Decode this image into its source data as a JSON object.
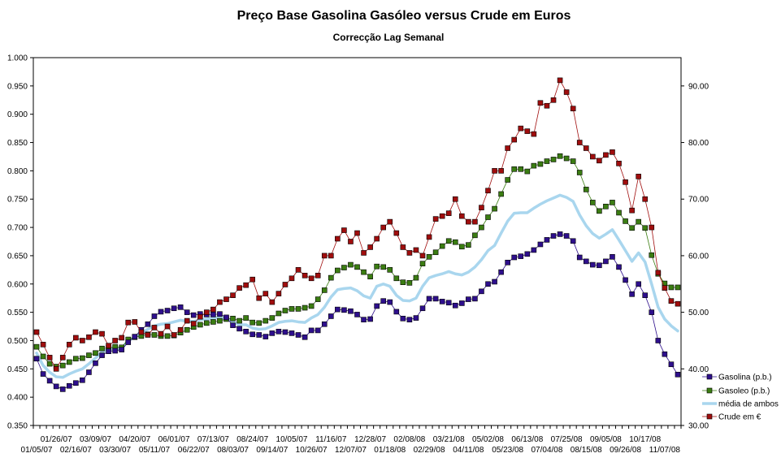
{
  "chart_data": {
    "type": "line",
    "title": "Preço Base Gasolina Gasóleo versus Crude em Euros",
    "subtitle": "Correcção Lag Semanal",
    "y_left": {
      "range": [
        0.35,
        1.0
      ],
      "ticks": [
        "0.350",
        "0.400",
        "0.450",
        "0.500",
        "0.550",
        "0.600",
        "0.650",
        "0.700",
        "0.750",
        "0.800",
        "0.850",
        "0.900",
        "0.950",
        "1.000"
      ]
    },
    "y_right": {
      "range": [
        30,
        95
      ],
      "ticks": [
        "30.00",
        "40.00",
        "50.00",
        "60.00",
        "70.00",
        "80.00",
        "90.00"
      ]
    },
    "x_labels_upper": [
      "01/26/07",
      "03/09/07",
      "04/20/07",
      "06/01/07",
      "07/13/07",
      "08/24/07",
      "10/05/07",
      "11/16/07",
      "12/28/07",
      "02/08/08",
      "03/21/08",
      "05/02/08",
      "06/13/08",
      "07/25/08",
      "09/05/08",
      "10/17/08"
    ],
    "x_labels_lower": [
      "01/05/07",
      "02/16/07",
      "03/30/07",
      "05/11/07",
      "06/22/07",
      "08/03/07",
      "09/14/07",
      "10/26/07",
      "12/07/07",
      "01/18/08",
      "02/29/08",
      "04/11/08",
      "05/23/08",
      "07/04/08",
      "08/15/08",
      "09/26/08",
      "11/07/08"
    ],
    "grid": false,
    "legend_position": "right",
    "series": [
      {
        "name": "Gasolina (p.b.)",
        "axis": "left",
        "color": "#2e0f8c",
        "marker": "square",
        "values": [
          0.468,
          0.441,
          0.429,
          0.419,
          0.414,
          0.42,
          0.425,
          0.43,
          0.444,
          0.46,
          0.474,
          0.481,
          0.482,
          0.484,
          0.497,
          0.507,
          0.519,
          0.529,
          0.543,
          0.551,
          0.553,
          0.557,
          0.559,
          0.55,
          0.545,
          0.547,
          0.546,
          0.546,
          0.547,
          0.541,
          0.527,
          0.521,
          0.516,
          0.511,
          0.51,
          0.507,
          0.513,
          0.516,
          0.515,
          0.513,
          0.51,
          0.506,
          0.518,
          0.518,
          0.529,
          0.543,
          0.555,
          0.554,
          0.552,
          0.546,
          0.537,
          0.538,
          0.561,
          0.57,
          0.568,
          0.551,
          0.539,
          0.537,
          0.54,
          0.557,
          0.574,
          0.574,
          0.569,
          0.567,
          0.562,
          0.566,
          0.573,
          0.574,
          0.587,
          0.6,
          0.604,
          0.621,
          0.638,
          0.647,
          0.649,
          0.653,
          0.66,
          0.67,
          0.678,
          0.685,
          0.688,
          0.685,
          0.676,
          0.647,
          0.64,
          0.634,
          0.633,
          0.64,
          0.648,
          0.63,
          0.607,
          0.582,
          0.6,
          0.58,
          0.55,
          0.5,
          0.476,
          0.458,
          0.44
        ]
      },
      {
        "name": "Gasoleo (p.b.)",
        "axis": "left",
        "color": "#3b7d12",
        "marker": "square",
        "values": [
          0.489,
          0.472,
          0.459,
          0.454,
          0.456,
          0.462,
          0.468,
          0.469,
          0.474,
          0.478,
          0.486,
          0.487,
          0.489,
          0.488,
          0.502,
          0.506,
          0.508,
          0.511,
          0.51,
          0.508,
          0.508,
          0.509,
          0.514,
          0.519,
          0.524,
          0.528,
          0.531,
          0.533,
          0.535,
          0.538,
          0.539,
          0.535,
          0.54,
          0.532,
          0.531,
          0.535,
          0.54,
          0.548,
          0.553,
          0.556,
          0.556,
          0.558,
          0.561,
          0.573,
          0.589,
          0.611,
          0.624,
          0.629,
          0.634,
          0.63,
          0.621,
          0.613,
          0.631,
          0.63,
          0.625,
          0.61,
          0.603,
          0.602,
          0.611,
          0.636,
          0.648,
          0.656,
          0.667,
          0.676,
          0.674,
          0.666,
          0.669,
          0.686,
          0.7,
          0.718,
          0.733,
          0.759,
          0.784,
          0.803,
          0.803,
          0.799,
          0.809,
          0.812,
          0.817,
          0.82,
          0.826,
          0.822,
          0.817,
          0.797,
          0.767,
          0.744,
          0.729,
          0.737,
          0.744,
          0.726,
          0.711,
          0.699,
          0.71,
          0.699,
          0.651,
          0.618,
          0.601,
          0.594,
          0.594
        ]
      },
      {
        "name": "média de ambos",
        "axis": "left",
        "color": "#a9d6ee",
        "marker": "none",
        "values": [
          0.478,
          0.456,
          0.444,
          0.436,
          0.435,
          0.441,
          0.446,
          0.45,
          0.459,
          0.469,
          0.48,
          0.484,
          0.486,
          0.486,
          0.5,
          0.506,
          0.513,
          0.52,
          0.526,
          0.529,
          0.53,
          0.533,
          0.536,
          0.534,
          0.534,
          0.537,
          0.538,
          0.54,
          0.541,
          0.539,
          0.533,
          0.528,
          0.528,
          0.522,
          0.52,
          0.521,
          0.526,
          0.532,
          0.534,
          0.535,
          0.533,
          0.532,
          0.54,
          0.546,
          0.559,
          0.577,
          0.59,
          0.592,
          0.593,
          0.588,
          0.579,
          0.575,
          0.596,
          0.6,
          0.596,
          0.58,
          0.571,
          0.57,
          0.575,
          0.596,
          0.611,
          0.615,
          0.618,
          0.622,
          0.618,
          0.616,
          0.621,
          0.63,
          0.643,
          0.659,
          0.668,
          0.69,
          0.711,
          0.725,
          0.726,
          0.726,
          0.734,
          0.741,
          0.747,
          0.752,
          0.757,
          0.753,
          0.746,
          0.722,
          0.703,
          0.689,
          0.681,
          0.688,
          0.696,
          0.678,
          0.659,
          0.64,
          0.655,
          0.639,
          0.6,
          0.559,
          0.538,
          0.526,
          0.517
        ]
      },
      {
        "name": "Crude em €",
        "axis": "right",
        "color": "#a00d0d",
        "marker": "square",
        "values": [
          46.5,
          44.3,
          42.0,
          40.0,
          42.0,
          44.3,
          45.5,
          45.0,
          45.6,
          46.5,
          46.2,
          44.1,
          45.0,
          45.5,
          48.2,
          48.3,
          46.5,
          46.0,
          47.3,
          46.2,
          47.5,
          46.0,
          46.9,
          48.5,
          48.0,
          49.2,
          50.0,
          50.5,
          51.8,
          52.3,
          53.0,
          54.3,
          54.8,
          55.8,
          52.5,
          53.3,
          51.8,
          53.3,
          54.9,
          56.0,
          57.5,
          56.5,
          56.0,
          56.5,
          60.0,
          60.0,
          63.0,
          64.5,
          62.5,
          64.0,
          60.5,
          61.5,
          63.0,
          65.0,
          66.0,
          64.0,
          61.5,
          60.5,
          61.0,
          60.0,
          63.3,
          66.5,
          67.0,
          67.5,
          70.0,
          67.0,
          66.0,
          66.0,
          68.5,
          71.5,
          75.0,
          75.0,
          79.0,
          80.5,
          82.5,
          82.0,
          81.5,
          87.0,
          86.5,
          87.5,
          91.0,
          88.9,
          86.0,
          80.0,
          79.0,
          77.5,
          76.8,
          77.8,
          78.3,
          76.3,
          73.0,
          68.0,
          74.0,
          70.0,
          65.0,
          57.0,
          54.3,
          52.0,
          51.5
        ]
      }
    ]
  }
}
